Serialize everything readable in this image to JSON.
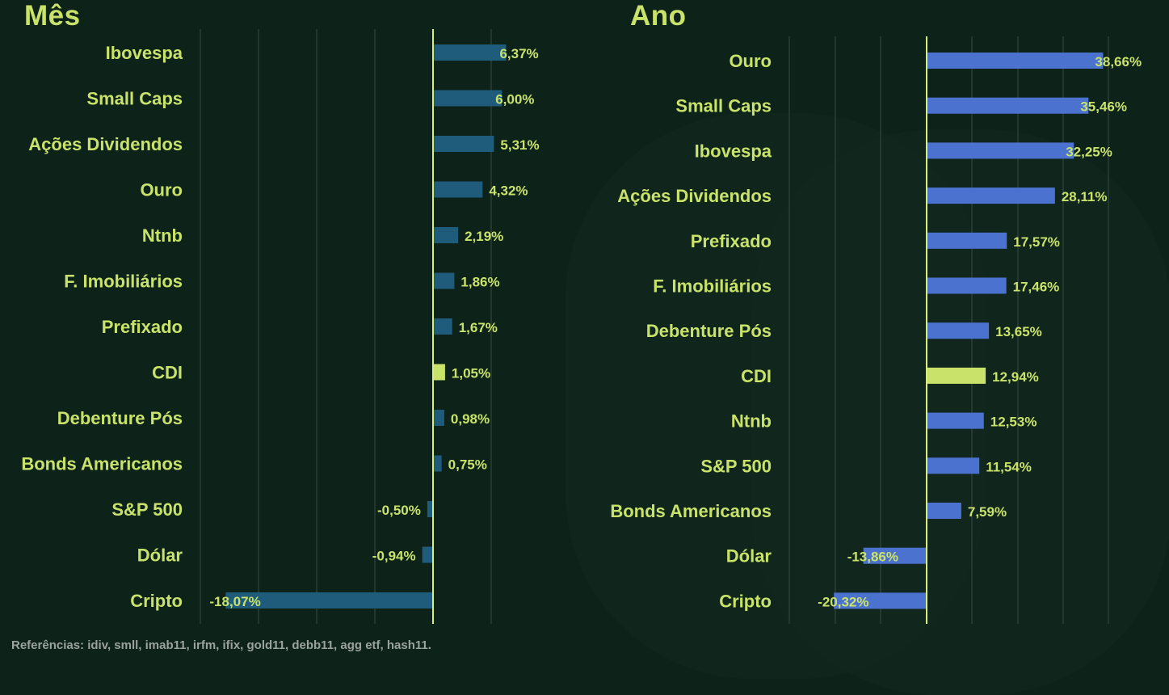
{
  "colors": {
    "background": "#0d2219",
    "label": "#c9e36a",
    "month_bar": "#1f5b7a",
    "year_bar": "#4b72cf",
    "highlight_bar": "#c9e36a",
    "zero_line": "#d8ee7c",
    "grid": "#3a4a43",
    "footer": "#9aa39e"
  },
  "chart_data": [
    {
      "type": "bar",
      "orientation": "horizontal",
      "title": "Mês",
      "categories": [
        "Ibovespa",
        "Small Caps",
        "Ações Dividendos",
        "Ouro",
        "Ntnb",
        "F. Imobiliários",
        "Prefixado",
        "CDI",
        "Debenture Pós",
        "Bonds Americanos",
        "S&P 500",
        "Dólar",
        "Cripto"
      ],
      "values": [
        6.37,
        6.0,
        5.31,
        4.32,
        2.19,
        1.86,
        1.67,
        1.05,
        0.98,
        0.75,
        -0.5,
        -0.94,
        -18.07
      ],
      "labels": [
        "6,37%",
        "6,00%",
        "5,31%",
        "4,32%",
        "2,19%",
        "1,86%",
        "1,67%",
        "1,05%",
        "0,98%",
        "0,75%",
        "-0,50%",
        "-0,94%",
        "-18,07%"
      ],
      "highlight": "CDI",
      "xlim": [
        -20,
        7.5
      ],
      "grid": true
    },
    {
      "type": "bar",
      "orientation": "horizontal",
      "title": "Ano",
      "categories": [
        "Ouro",
        "Small Caps",
        "Ibovespa",
        "Ações Dividendos",
        "Prefixado",
        "F. Imobiliários",
        "Debenture Pós",
        "CDI",
        "Ntnb",
        "S&P 500",
        "Bonds Americanos",
        "Dólar",
        "Cripto"
      ],
      "values": [
        38.66,
        35.46,
        32.25,
        28.11,
        17.57,
        17.46,
        13.65,
        12.94,
        12.53,
        11.54,
        7.59,
        -13.86,
        -20.32
      ],
      "labels": [
        "38,66%",
        "35,46%",
        "32,25%",
        "28,11%",
        "17,57%",
        "17,46%",
        "13,65%",
        "12,94%",
        "12,53%",
        "11,54%",
        "7,59%",
        "-13,86%",
        "-20,32%"
      ],
      "highlight": "CDI",
      "xlim": [
        -30,
        40
      ],
      "grid": true
    }
  ],
  "footer": {
    "text": "Referências: idiv, smll, imab11, irfm, ifix, gold11, debb11, agg etf, hash11."
  }
}
